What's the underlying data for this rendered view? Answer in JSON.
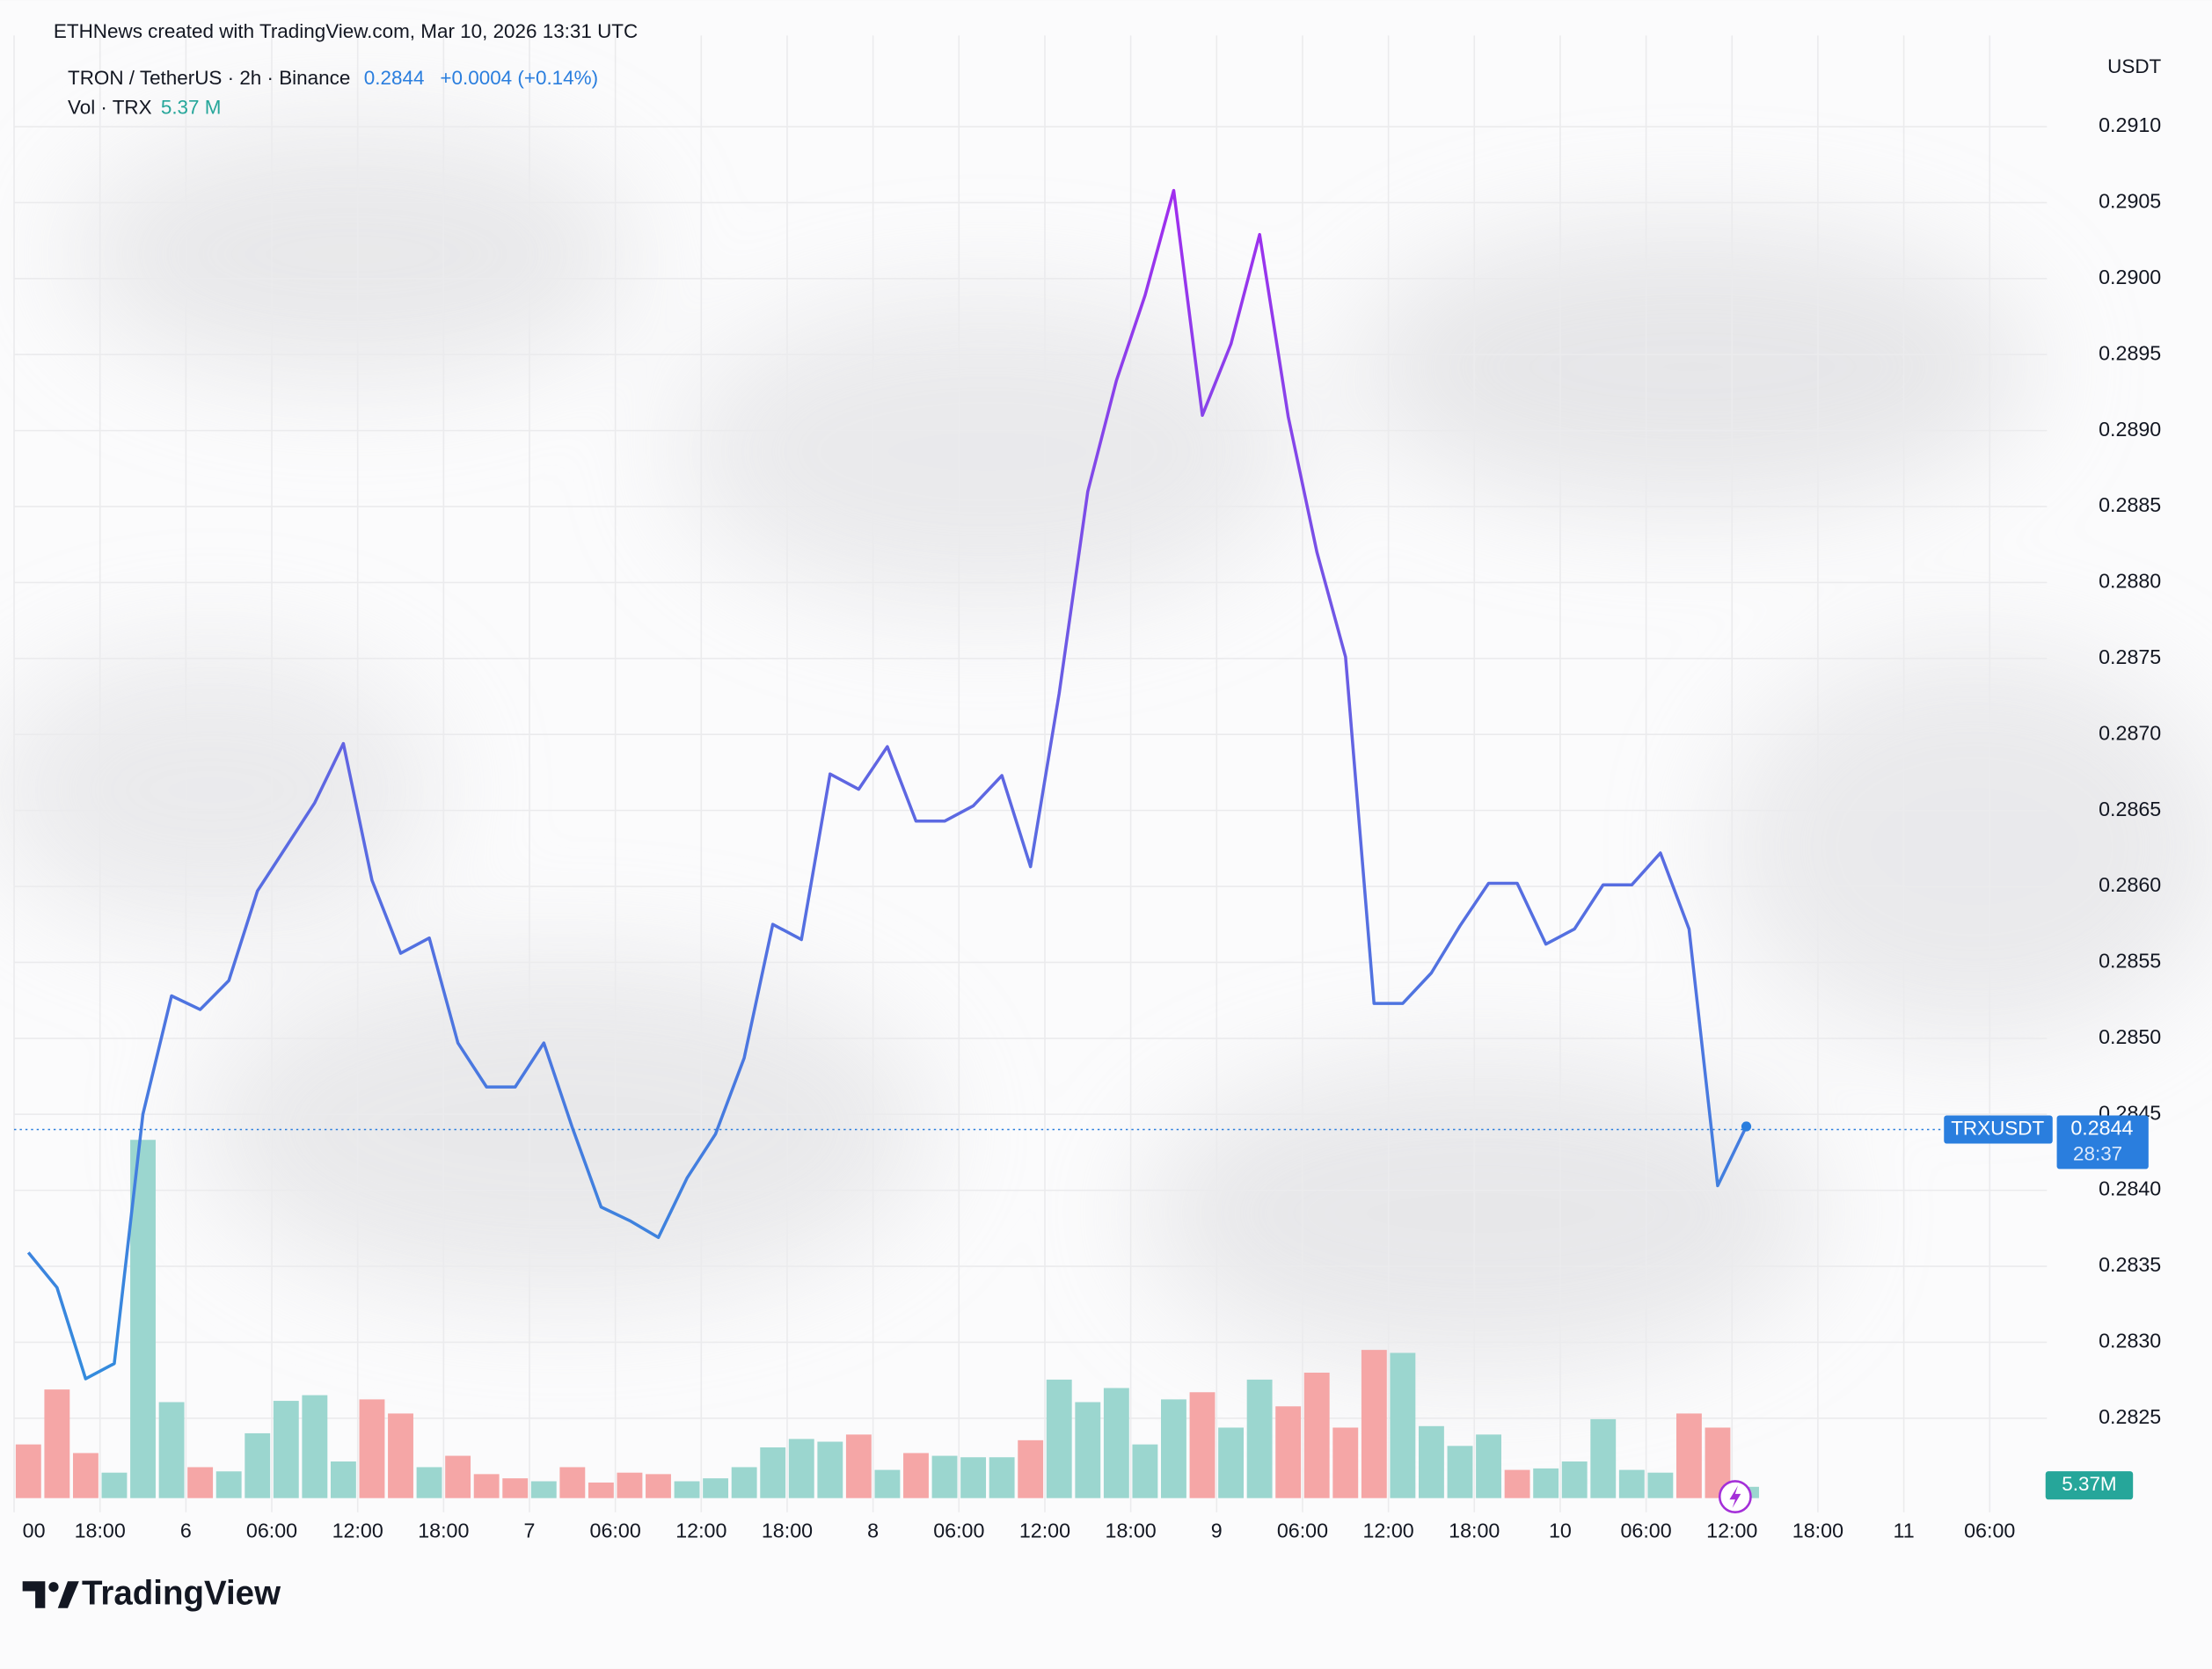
{
  "chart_data": {
    "type": "line",
    "header": "ETHNews created with TradingView.com, Mar 10, 2026 13:31 UTC",
    "symbol": "TRON / TetherUS · 2h · Binance",
    "last_price": 0.2844,
    "change": "+0.0004 (+0.14%)",
    "volume_name": "Vol · TRX",
    "volume_legend": "5.37 M",
    "volume_badge": "5.37M",
    "axis_unit": "USDT",
    "ticker": "TRXUSDT",
    "countdown": "28:37",
    "brand": "TradingView",
    "line_colors": [
      "#b21ef2",
      "#5f66e2",
      "#2a93dc"
    ],
    "badge_color": "#2a7ede",
    "values": [
      0.28359,
      0.28336,
      0.28276,
      0.28286,
      0.2845,
      0.28528,
      0.28519,
      0.28538,
      0.28597,
      0.28626,
      0.28655,
      0.28694,
      0.28604,
      0.28556,
      0.28566,
      0.28497,
      0.28468,
      0.28468,
      0.28497,
      0.28441,
      0.28389,
      0.2838,
      0.28369,
      0.28408,
      0.28437,
      0.28487,
      0.28575,
      0.28565,
      0.28674,
      0.28664,
      0.28692,
      0.28643,
      0.28643,
      0.28653,
      0.28673,
      0.28613,
      0.28727,
      0.2886,
      0.28933,
      0.28989,
      0.29058,
      0.2891,
      0.28957,
      0.29029,
      0.28909,
      0.2882,
      0.28751,
      0.28523,
      0.28523,
      0.28543,
      0.28574,
      0.28602,
      0.28602,
      0.28562,
      0.28572,
      0.28601,
      0.28601,
      0.28622,
      0.28572,
      0.28403,
      0.28442
    ],
    "volume": {
      "values": [
        25.5,
        51.6,
        21.4,
        12.1,
        170.2,
        45.6,
        14.7,
        12.7,
        30.8,
        46.2,
        48.9,
        17.4,
        46.9,
        40.2,
        14.7,
        20.1,
        11.4,
        9.4,
        8.0,
        14.7,
        7.4,
        12.1,
        11.4,
        8.0,
        9.4,
        14.7,
        24.1,
        28.1,
        26.8,
        30.2,
        13.4,
        21.4,
        20.1,
        19.4,
        19.4,
        27.5,
        56.3,
        45.6,
        52.3,
        25.5,
        46.9,
        50.3,
        33.5,
        56.3,
        43.6,
        59.6,
        33.5,
        70.4,
        69.0,
        34.2,
        24.8,
        30.2,
        13.4,
        14.1,
        17.4,
        37.5,
        13.4,
        12.1,
        40.2,
        33.5,
        5.37
      ],
      "colors": [
        "#f5a6a6",
        "#f5a6a6",
        "#f5a6a6",
        "#9bd6cf",
        "#9bd6cf",
        "#9bd6cf",
        "#f5a6a6",
        "#9bd6cf",
        "#9bd6cf",
        "#9bd6cf",
        "#9bd6cf",
        "#9bd6cf",
        "#f5a6a6",
        "#f5a6a6",
        "#9bd6cf",
        "#f5a6a6",
        "#f5a6a6",
        "#f5a6a6",
        "#9bd6cf",
        "#f5a6a6",
        "#f5a6a6",
        "#f5a6a6",
        "#f5a6a6",
        "#9bd6cf",
        "#9bd6cf",
        "#9bd6cf",
        "#9bd6cf",
        "#9bd6cf",
        "#9bd6cf",
        "#f5a6a6",
        "#9bd6cf",
        "#f5a6a6",
        "#9bd6cf",
        "#9bd6cf",
        "#9bd6cf",
        "#f5a6a6",
        "#9bd6cf",
        "#9bd6cf",
        "#9bd6cf",
        "#9bd6cf",
        "#9bd6cf",
        "#f5a6a6",
        "#9bd6cf",
        "#9bd6cf",
        "#f5a6a6",
        "#f5a6a6",
        "#f5a6a6",
        "#f5a6a6",
        "#9bd6cf",
        "#9bd6cf",
        "#9bd6cf",
        "#9bd6cf",
        "#f5a6a6",
        "#9bd6cf",
        "#9bd6cf",
        "#9bd6cf",
        "#9bd6cf",
        "#9bd6cf",
        "#f5a6a6",
        "#f5a6a6",
        "#9bd6cf"
      ],
      "badge_color": "#26a69a"
    },
    "xlim": [
      -0.5,
      70.5
    ],
    "xticks": [
      {
        "value": -0.5,
        "label": "00"
      },
      {
        "value": 2.5,
        "label": "18:00"
      },
      {
        "value": 5.5,
        "label": "6"
      },
      {
        "value": 8.5,
        "label": "06:00"
      },
      {
        "value": 11.5,
        "label": "12:00"
      },
      {
        "value": 14.5,
        "label": "18:00"
      },
      {
        "value": 17.5,
        "label": "7"
      },
      {
        "value": 20.5,
        "label": "06:00"
      },
      {
        "value": 23.5,
        "label": "12:00"
      },
      {
        "value": 26.5,
        "label": "18:00"
      },
      {
        "value": 29.5,
        "label": "8"
      },
      {
        "value": 32.5,
        "label": "06:00"
      },
      {
        "value": 35.5,
        "label": "12:00"
      },
      {
        "value": 38.5,
        "label": "18:00"
      },
      {
        "value": 41.5,
        "label": "9"
      },
      {
        "value": 44.5,
        "label": "06:00"
      },
      {
        "value": 47.5,
        "label": "12:00"
      },
      {
        "value": 50.5,
        "label": "18:00"
      },
      {
        "value": 53.5,
        "label": "10"
      },
      {
        "value": 56.5,
        "label": "06:00"
      },
      {
        "value": 59.5,
        "label": "12:00"
      },
      {
        "value": 62.5,
        "label": "18:00"
      },
      {
        "value": 65.5,
        "label": "11"
      },
      {
        "value": 68.5,
        "label": "06:00"
      }
    ],
    "ylim": [
      0.2819,
      0.2916
    ],
    "yticks": [
      0.2825,
      {
        "value": 0.283,
        "label": "0.2830"
      },
      0.2835,
      {
        "value": 0.284,
        "label": "0.2840"
      },
      0.2845,
      {
        "value": 0.285,
        "label": "0.2850"
      },
      0.2855,
      {
        "value": 0.286,
        "label": "0.2860"
      },
      0.2865,
      {
        "value": 0.287,
        "label": "0.2870"
      },
      0.2875,
      {
        "value": 0.288,
        "label": "0.2880"
      },
      0.2885,
      {
        "value": 0.289,
        "label": "0.2890"
      },
      0.2895,
      {
        "value": 0.29,
        "label": "0.2900"
      },
      0.2905,
      {
        "value": 0.291,
        "label": "0.2910"
      }
    ],
    "grid": true
  }
}
